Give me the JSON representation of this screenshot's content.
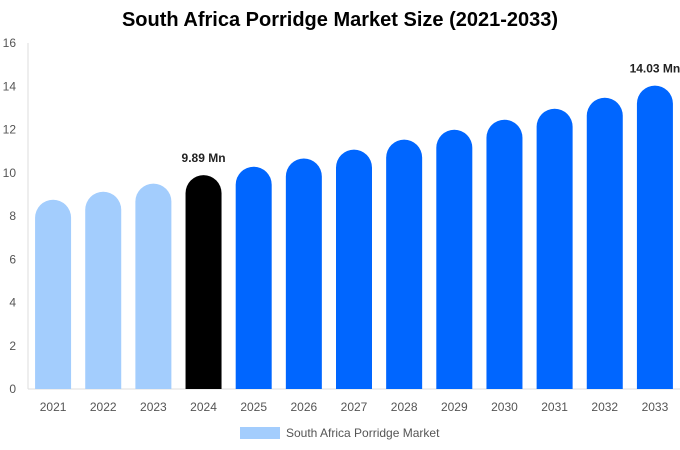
{
  "chart_data": {
    "type": "bar",
    "title": "South Africa Porridge Market Size (2021-2033)",
    "categories": [
      "2021",
      "2022",
      "2023",
      "2024",
      "2025",
      "2026",
      "2027",
      "2028",
      "2029",
      "2030",
      "2031",
      "2032",
      "2033"
    ],
    "series": [
      {
        "name": "South Africa Porridge Market",
        "values": [
          8.75,
          9.12,
          9.5,
          9.89,
          10.28,
          10.66,
          11.07,
          11.53,
          11.99,
          12.45,
          12.96,
          13.47,
          14.03
        ]
      }
    ],
    "data_labels": {
      "3": "9.89 Mn",
      "12": "14.03 Mn"
    },
    "ylim": [
      0,
      16
    ],
    "yticks": [
      0,
      2,
      4,
      6,
      8,
      10,
      12,
      14,
      16
    ],
    "grid": false,
    "legend": "bottom",
    "colors": {
      "historical": "#a3cdfd",
      "current": "#000000",
      "forecast": "#0066ff"
    }
  }
}
